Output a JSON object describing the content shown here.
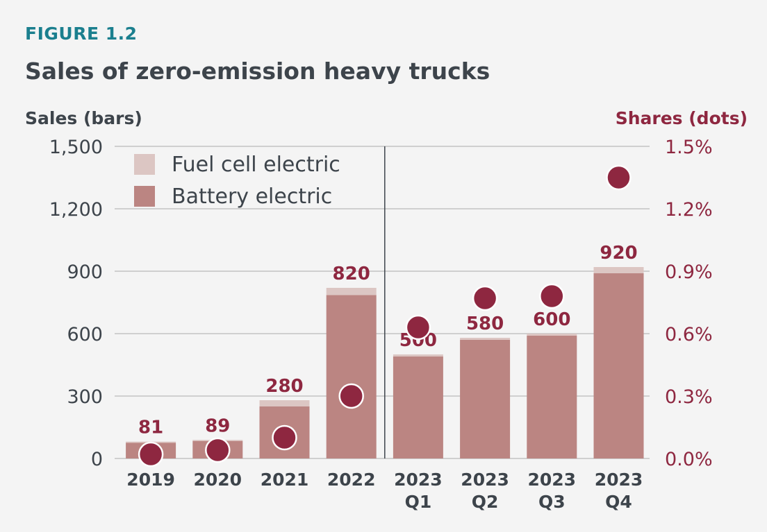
{
  "figure_label": "FIGURE 1.2",
  "title": "Sales of zero-emission heavy trucks",
  "colors": {
    "fuel_cell": "#dcc6c3",
    "battery": "#bb8582",
    "dots": "#8e2740",
    "value_labels": "#8e2740",
    "text": "#3d444b",
    "grid": "#cfcfcf"
  },
  "chart_data": {
    "type": "bar",
    "categories": [
      "2019",
      "2020",
      "2021",
      "2022",
      "2023 Q1",
      "2023 Q2",
      "2023 Q3",
      "2023 Q4"
    ],
    "category_lines": [
      [
        "2019"
      ],
      [
        "2020"
      ],
      [
        "2021"
      ],
      [
        "2022"
      ],
      [
        "2023",
        "Q1"
      ],
      [
        "2023",
        "Q2"
      ],
      [
        "2023",
        "Q3"
      ],
      [
        "2023",
        "Q4"
      ]
    ],
    "series": [
      {
        "name": "Battery electric",
        "values": [
          75,
          84,
          250,
          785,
          490,
          570,
          590,
          890
        ]
      },
      {
        "name": "Fuel cell electric",
        "values": [
          6,
          5,
          30,
          35,
          10,
          10,
          10,
          30
        ]
      }
    ],
    "totals": [
      81,
      89,
      280,
      820,
      500,
      580,
      600,
      920
    ],
    "total_labels": [
      "81",
      "89",
      "280",
      "820",
      "500",
      "580",
      "600",
      "920"
    ],
    "shares": [
      0.02,
      0.04,
      0.1,
      0.3,
      0.63,
      0.77,
      0.78,
      1.35
    ],
    "ylabel_left": "Sales (bars)",
    "ylabel_right": "Shares (dots)",
    "ylim_left": [
      0,
      1500
    ],
    "ylim_right": [
      0,
      1.5
    ],
    "yticks_left": [
      "1,500",
      "1,200",
      "900",
      "600",
      "300",
      "0"
    ],
    "yticks_right": [
      "1.5%",
      "1.2%",
      "0.9%",
      "0.6%",
      "0.3%",
      "0.0%"
    ],
    "legend": [
      "Fuel cell electric",
      "Battery electric"
    ],
    "legend_position": "top-left",
    "grid": true
  }
}
